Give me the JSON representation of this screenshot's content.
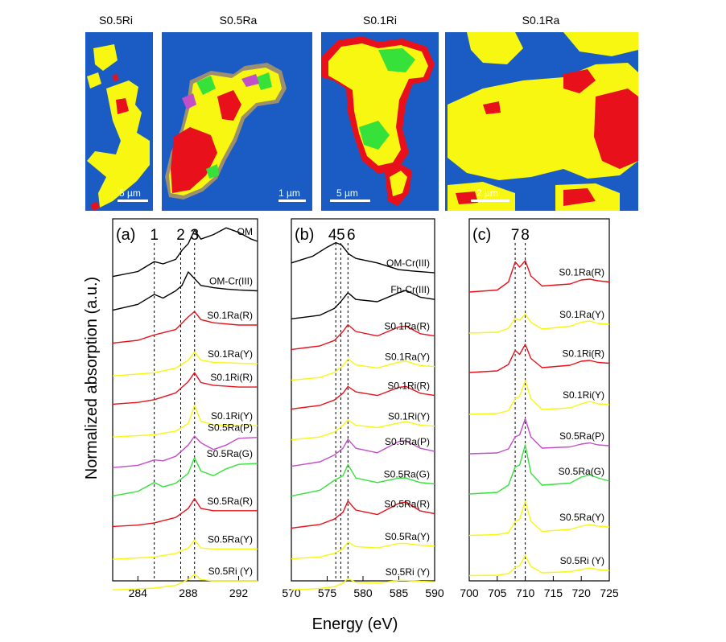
{
  "maps": [
    {
      "title": "S0.5Ri",
      "scalebar": "5 µm"
    },
    {
      "title": "S0.5Ra",
      "scalebar": "1 µm"
    },
    {
      "title": "S0.1Ri",
      "scalebar": "5 µm"
    },
    {
      "title": "S0.1Ra",
      "scalebar": "2 µm"
    }
  ],
  "colors": {
    "map_background": "#1a5cc4",
    "Y": "#f7f711",
    "R": "#e8101a",
    "G": "#36e23a",
    "P": "#c24ec8",
    "reference": "#000000"
  },
  "ylabel": "Normalized absorption (a.u.)",
  "xlabel": "Energy (eV)",
  "chart_data": [
    {
      "type": "line",
      "panel": "(a)",
      "xlim": [
        282,
        293.5
      ],
      "xticks": [
        284,
        288,
        292
      ],
      "peak_lines": [
        {
          "label": "1",
          "x": 285.3
        },
        {
          "label": "2",
          "x": 287.4
        },
        {
          "label": "3",
          "x": 288.5
        }
      ],
      "series": [
        {
          "name": "OM",
          "color": "#000000",
          "x": [
            282,
            284,
            285,
            285.3,
            286,
            287,
            287.5,
            288,
            288.5,
            289,
            290,
            291,
            292,
            293,
            293.5
          ],
          "y": [
            0.22,
            0.33,
            0.5,
            0.55,
            0.5,
            0.6,
            0.8,
            0.95,
            1.25,
            1.05,
            1.15,
            1.3,
            1.2,
            1.05,
            1.0
          ]
        },
        {
          "name": "OM-Cr(III)",
          "color": "#000000",
          "x": [
            282,
            284,
            285,
            285.3,
            286,
            287,
            287.5,
            288,
            288.5,
            289,
            290,
            291,
            292,
            293.5
          ],
          "y": [
            0.15,
            0.28,
            0.45,
            0.5,
            0.42,
            0.58,
            0.7,
            1.0,
            0.85,
            0.7,
            0.65,
            0.62,
            0.6,
            0.58
          ]
        },
        {
          "name": "S0.1Ra(R)",
          "color": "#e8101a",
          "x": [
            282,
            284,
            285.3,
            287,
            288,
            288.5,
            289,
            290,
            292,
            293.5
          ],
          "y": [
            0.1,
            0.16,
            0.28,
            0.4,
            0.68,
            0.8,
            0.62,
            0.55,
            0.5,
            0.5
          ]
        },
        {
          "name": "S0.1Ra(Y)",
          "color": "#f7f711",
          "x": [
            282,
            284,
            285.3,
            287,
            288,
            288.5,
            289,
            290,
            292,
            293.5
          ],
          "y": [
            0.05,
            0.09,
            0.12,
            0.22,
            0.4,
            0.58,
            0.4,
            0.35,
            0.33,
            0.32
          ]
        },
        {
          "name": "S0.1Ri(R)",
          "color": "#e8101a",
          "x": [
            282,
            284,
            285.3,
            287,
            288,
            288.5,
            289,
            290,
            292,
            293.5
          ],
          "y": [
            0.1,
            0.14,
            0.2,
            0.35,
            0.6,
            0.8,
            0.58,
            0.52,
            0.48,
            0.48
          ]
        },
        {
          "name": "S0.1Ri(Y)",
          "color": "#f7f711",
          "x": [
            282,
            284,
            285.3,
            287,
            288,
            288.5,
            289,
            290,
            292,
            293.5
          ],
          "y": [
            0.05,
            0.08,
            0.1,
            0.18,
            0.35,
            0.75,
            0.4,
            0.32,
            0.3,
            0.3
          ]
        },
        {
          "name": "S0.5Ra(P)",
          "color": "#c24ec8",
          "x": [
            282,
            284,
            285.3,
            286,
            287,
            288,
            288.5,
            289,
            290,
            291,
            292,
            293.5
          ],
          "y": [
            0.05,
            0.1,
            0.22,
            0.2,
            0.3,
            0.55,
            0.75,
            0.6,
            0.45,
            0.55,
            0.7,
            0.72
          ]
        },
        {
          "name": "S0.5Ra(G)",
          "color": "#36e23a",
          "x": [
            282,
            284,
            285.3,
            286,
            287,
            288,
            288.5,
            289,
            290,
            291,
            292,
            293.5
          ],
          "y": [
            0.1,
            0.2,
            0.4,
            0.3,
            0.38,
            0.6,
            0.95,
            0.65,
            0.55,
            0.7,
            0.8,
            0.82
          ]
        },
        {
          "name": "S0.5Ra(R)",
          "color": "#e8101a",
          "x": [
            282,
            284,
            285.3,
            287,
            288,
            288.5,
            289,
            290,
            292,
            293.5
          ],
          "y": [
            0.1,
            0.13,
            0.18,
            0.3,
            0.5,
            0.72,
            0.5,
            0.45,
            0.45,
            0.45
          ]
        },
        {
          "name": "S0.5Ra(Y)",
          "color": "#f7f711",
          "x": [
            282,
            284,
            285.3,
            287,
            288,
            288.5,
            289,
            290,
            292,
            293.5
          ],
          "y": [
            0.05,
            0.08,
            0.1,
            0.18,
            0.3,
            0.48,
            0.3,
            0.28,
            0.28,
            0.28
          ]
        },
        {
          "name": "S0.5Ri (Y)",
          "color": "#f7f711",
          "x": [
            282,
            284,
            285.3,
            287,
            288,
            288.5,
            289,
            290,
            292,
            293.5
          ],
          "y": [
            0.05,
            0.07,
            0.09,
            0.15,
            0.28,
            0.4,
            0.28,
            0.25,
            0.25,
            0.25
          ]
        }
      ]
    },
    {
      "type": "line",
      "panel": "(b)",
      "xlim": [
        570,
        590
      ],
      "xticks": [
        570,
        575,
        580,
        585,
        590
      ],
      "peak_lines": [
        {
          "label": "4",
          "x": 576.2
        },
        {
          "label": "5",
          "x": 576.9
        },
        {
          "label": "6",
          "x": 577.9
        }
      ],
      "series": [
        {
          "name": "OM-Cr(III)",
          "color": "#000000",
          "x": [
            570,
            573,
            575,
            576.2,
            577,
            578,
            579,
            582,
            585,
            587,
            590
          ],
          "y": [
            0.7,
            0.85,
            1.05,
            1.15,
            1.1,
            0.9,
            0.8,
            0.7,
            0.55,
            0.52,
            0.48
          ]
        },
        {
          "name": "Fh-Cr(III)",
          "color": "#000000",
          "x": [
            570,
            574,
            576,
            576.9,
            577.9,
            579,
            582,
            585,
            586,
            588,
            590
          ],
          "y": [
            0.12,
            0.2,
            0.35,
            0.5,
            0.7,
            0.55,
            0.5,
            0.7,
            0.75,
            0.6,
            0.55
          ]
        },
        {
          "name": "S0.1Ra(R)",
          "color": "#e8101a",
          "x": [
            570,
            574,
            576,
            577.2,
            577.9,
            579,
            582,
            585,
            586,
            588,
            590
          ],
          "y": [
            0.1,
            0.18,
            0.3,
            0.5,
            0.65,
            0.5,
            0.4,
            0.6,
            0.62,
            0.45,
            0.4
          ]
        },
        {
          "name": "S0.1Ra(Y)",
          "color": "#f7f711",
          "x": [
            570,
            574,
            576,
            577.2,
            577.9,
            579,
            582,
            585,
            586,
            588,
            590
          ],
          "y": [
            0.08,
            0.14,
            0.25,
            0.4,
            0.55,
            0.42,
            0.35,
            0.48,
            0.5,
            0.4,
            0.38
          ]
        },
        {
          "name": "S0.1Ri(R)",
          "color": "#e8101a",
          "x": [
            570,
            574,
            576,
            577.2,
            577.9,
            579,
            582,
            585,
            586,
            588,
            590
          ],
          "y": [
            0.1,
            0.18,
            0.3,
            0.45,
            0.6,
            0.48,
            0.4,
            0.58,
            0.6,
            0.45,
            0.4
          ]
        },
        {
          "name": "S0.1Ri(Y)",
          "color": "#f7f711",
          "x": [
            570,
            574,
            576,
            577.2,
            577.9,
            579,
            582,
            585,
            586,
            588,
            590
          ],
          "y": [
            0.08,
            0.14,
            0.25,
            0.4,
            0.52,
            0.4,
            0.35,
            0.45,
            0.48,
            0.4,
            0.38
          ]
        },
        {
          "name": "S0.5Ra(P)",
          "color": "#c24ec8",
          "x": [
            570,
            574,
            576,
            577.2,
            577.9,
            579,
            582,
            585,
            586,
            588,
            590
          ],
          "y": [
            0.15,
            0.25,
            0.4,
            0.55,
            0.75,
            0.55,
            0.45,
            0.7,
            0.72,
            0.55,
            0.48
          ]
        },
        {
          "name": "S0.5Ra(G)",
          "color": "#36e23a",
          "x": [
            570,
            574,
            576,
            577.2,
            577.9,
            579,
            582,
            585,
            586,
            588,
            590
          ],
          "y": [
            0.15,
            0.28,
            0.5,
            0.6,
            0.85,
            0.55,
            0.45,
            0.55,
            0.55,
            0.45,
            0.42
          ]
        },
        {
          "name": "S0.5Ra(R)",
          "color": "#e8101a",
          "x": [
            570,
            574,
            576,
            577.2,
            577.9,
            579,
            582,
            585,
            586,
            588,
            590
          ],
          "y": [
            0.1,
            0.18,
            0.3,
            0.45,
            0.7,
            0.5,
            0.4,
            0.65,
            0.68,
            0.48,
            0.42
          ]
        },
        {
          "name": "S0.5Ra(Y)",
          "color": "#f7f711",
          "x": [
            570,
            574,
            576,
            577.2,
            577.9,
            579,
            582,
            585,
            586,
            588,
            590
          ],
          "y": [
            0.08,
            0.12,
            0.2,
            0.3,
            0.45,
            0.35,
            0.32,
            0.42,
            0.42,
            0.38,
            0.36
          ]
        },
        {
          "name": "S0.5Ri (Y)",
          "color": "#f7f711",
          "x": [
            570,
            574,
            576,
            577.2,
            577.9,
            579,
            582,
            585,
            586,
            588,
            590
          ],
          "y": [
            0.05,
            0.08,
            0.12,
            0.2,
            0.3,
            0.22,
            0.2,
            0.26,
            0.26,
            0.24,
            0.23
          ]
        }
      ]
    },
    {
      "type": "line",
      "panel": "(c)",
      "xlim": [
        700,
        725
      ],
      "xticks": [
        700,
        705,
        710,
        715,
        720,
        725
      ],
      "peak_lines": [
        {
          "label": "7",
          "x": 708.2
        },
        {
          "label": "8",
          "x": 710.0
        }
      ],
      "series": [
        {
          "name": "S0.1Ra(R)",
          "color": "#e8101a",
          "x": [
            700,
            705,
            707,
            708.2,
            709,
            710,
            711,
            713,
            718,
            720,
            721.5,
            723,
            725
          ],
          "y": [
            0.1,
            0.15,
            0.35,
            0.85,
            0.72,
            0.88,
            0.5,
            0.25,
            0.3,
            0.4,
            0.42,
            0.38,
            0.35
          ]
        },
        {
          "name": "S0.1Ra(Y)",
          "color": "#f7f711",
          "x": [
            700,
            705,
            707,
            708.2,
            709,
            710,
            711,
            713,
            718,
            720,
            721.5,
            723,
            725
          ],
          "y": [
            0.08,
            0.1,
            0.2,
            0.45,
            0.4,
            0.55,
            0.35,
            0.18,
            0.25,
            0.35,
            0.38,
            0.32,
            0.3
          ]
        },
        {
          "name": "S0.1Ri(R)",
          "color": "#e8101a",
          "x": [
            700,
            705,
            707,
            708.2,
            709,
            710,
            711,
            713,
            718,
            720,
            721.5,
            723,
            725
          ],
          "y": [
            0.1,
            0.14,
            0.3,
            0.65,
            0.55,
            0.8,
            0.45,
            0.22,
            0.28,
            0.38,
            0.4,
            0.35,
            0.33
          ]
        },
        {
          "name": "S0.1Ri(Y)",
          "color": "#f7f711",
          "x": [
            700,
            705,
            707,
            708.2,
            709,
            710,
            711,
            713,
            718,
            720,
            721.5,
            723,
            725
          ],
          "y": [
            0.06,
            0.08,
            0.15,
            0.45,
            0.5,
            0.9,
            0.45,
            0.18,
            0.22,
            0.32,
            0.38,
            0.32,
            0.3
          ]
        },
        {
          "name": "S0.5Ra(P)",
          "color": "#c24ec8",
          "x": [
            700,
            705,
            707,
            708.2,
            709,
            710,
            711,
            713,
            718,
            720,
            721.5,
            723,
            725
          ],
          "y": [
            0.08,
            0.1,
            0.2,
            0.5,
            0.55,
            0.95,
            0.5,
            0.22,
            0.25,
            0.32,
            0.35,
            0.3,
            0.28
          ]
        },
        {
          "name": "S0.5Ra(G)",
          "color": "#36e23a",
          "x": [
            700,
            705,
            707,
            708.2,
            709,
            710,
            711,
            713,
            718,
            720,
            721.5,
            723,
            725
          ],
          "y": [
            0.08,
            0.12,
            0.3,
            0.75,
            0.8,
            1.3,
            0.6,
            0.3,
            0.35,
            0.5,
            0.55,
            0.48,
            0.4
          ]
        },
        {
          "name": "S0.5Ra(Y)",
          "color": "#f7f711",
          "x": [
            700,
            705,
            707,
            708.2,
            709,
            710,
            711,
            713,
            718,
            720,
            721.5,
            723,
            725
          ],
          "y": [
            0.05,
            0.07,
            0.12,
            0.4,
            0.45,
            0.9,
            0.4,
            0.15,
            0.2,
            0.28,
            0.32,
            0.28,
            0.26
          ]
        },
        {
          "name": "S0.5Ri (Y)",
          "color": "#f7f711",
          "x": [
            700,
            705,
            707,
            708.2,
            709,
            710,
            711,
            713,
            718,
            720,
            721.5,
            723,
            725
          ],
          "y": [
            0.05,
            0.06,
            0.1,
            0.25,
            0.3,
            0.55,
            0.28,
            0.12,
            0.15,
            0.2,
            0.24,
            0.2,
            0.18
          ]
        }
      ]
    }
  ]
}
